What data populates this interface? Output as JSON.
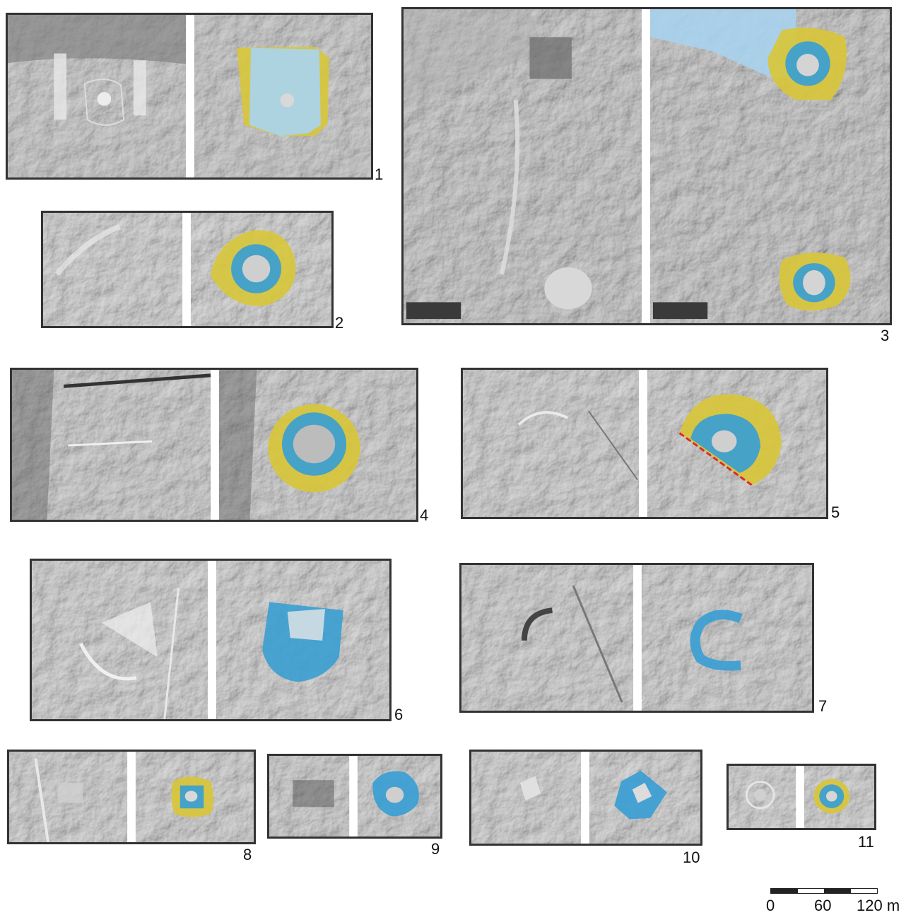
{
  "panels": [
    {
      "label": "1"
    },
    {
      "label": "2"
    },
    {
      "label": "3"
    },
    {
      "label": "4"
    },
    {
      "label": "5"
    },
    {
      "label": "6"
    },
    {
      "label": "7"
    },
    {
      "label": "8"
    },
    {
      "label": "9"
    },
    {
      "label": "10"
    },
    {
      "label": "11"
    }
  ],
  "scale": {
    "tick0": "0",
    "tick1": "60",
    "tick2": "120 m"
  },
  "colors": {
    "zone_yellow": "#d8c63a",
    "zone_blue": "#3a9ed2",
    "zone_lightblue": "#a9d2ee",
    "frame": "#333333",
    "divider": "#ffffff",
    "red_dash": "#e0282a"
  }
}
